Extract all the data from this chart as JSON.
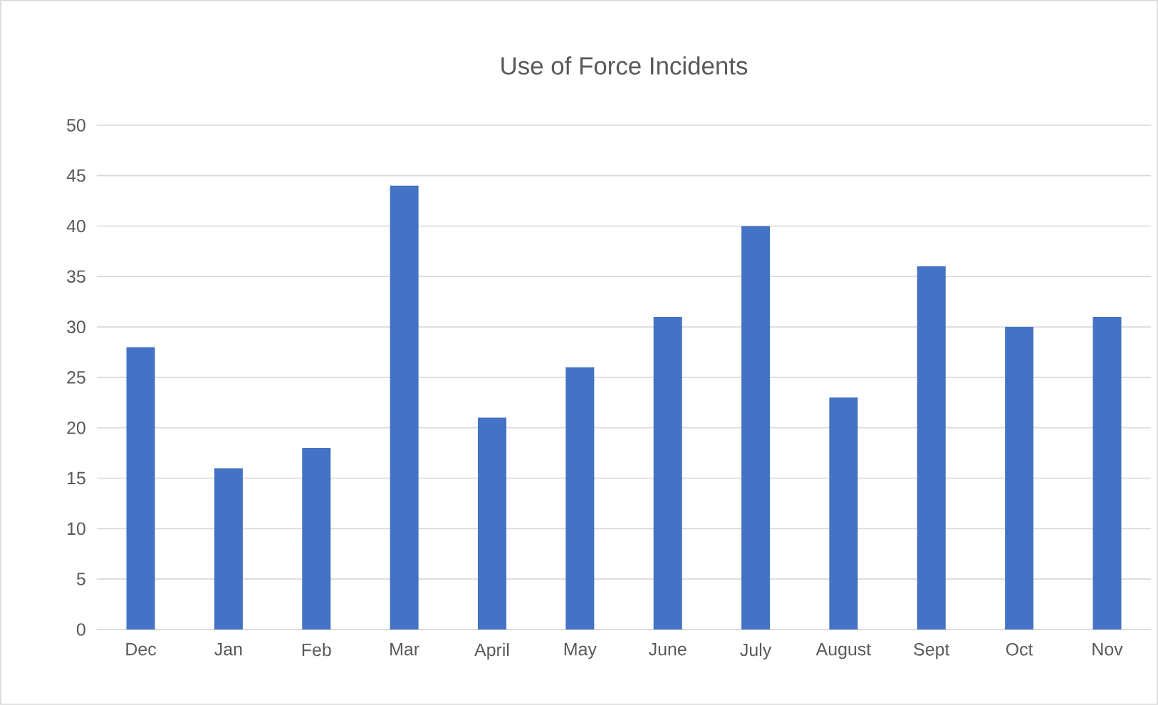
{
  "chart_data": {
    "type": "bar",
    "title": "Use of Force Incidents",
    "categories": [
      "Dec",
      "Jan",
      "Feb",
      "Mar",
      "April",
      "May",
      "June",
      "July",
      "August",
      "Sept",
      "Oct",
      "Nov"
    ],
    "values": [
      28,
      16,
      18,
      44,
      21,
      26,
      31,
      40,
      23,
      36,
      30,
      31
    ],
    "color": "#4472c4",
    "ylim": [
      0,
      50
    ],
    "yticks": [
      0,
      5,
      10,
      15,
      20,
      25,
      30,
      35,
      40,
      45,
      50
    ],
    "grid": "y"
  }
}
